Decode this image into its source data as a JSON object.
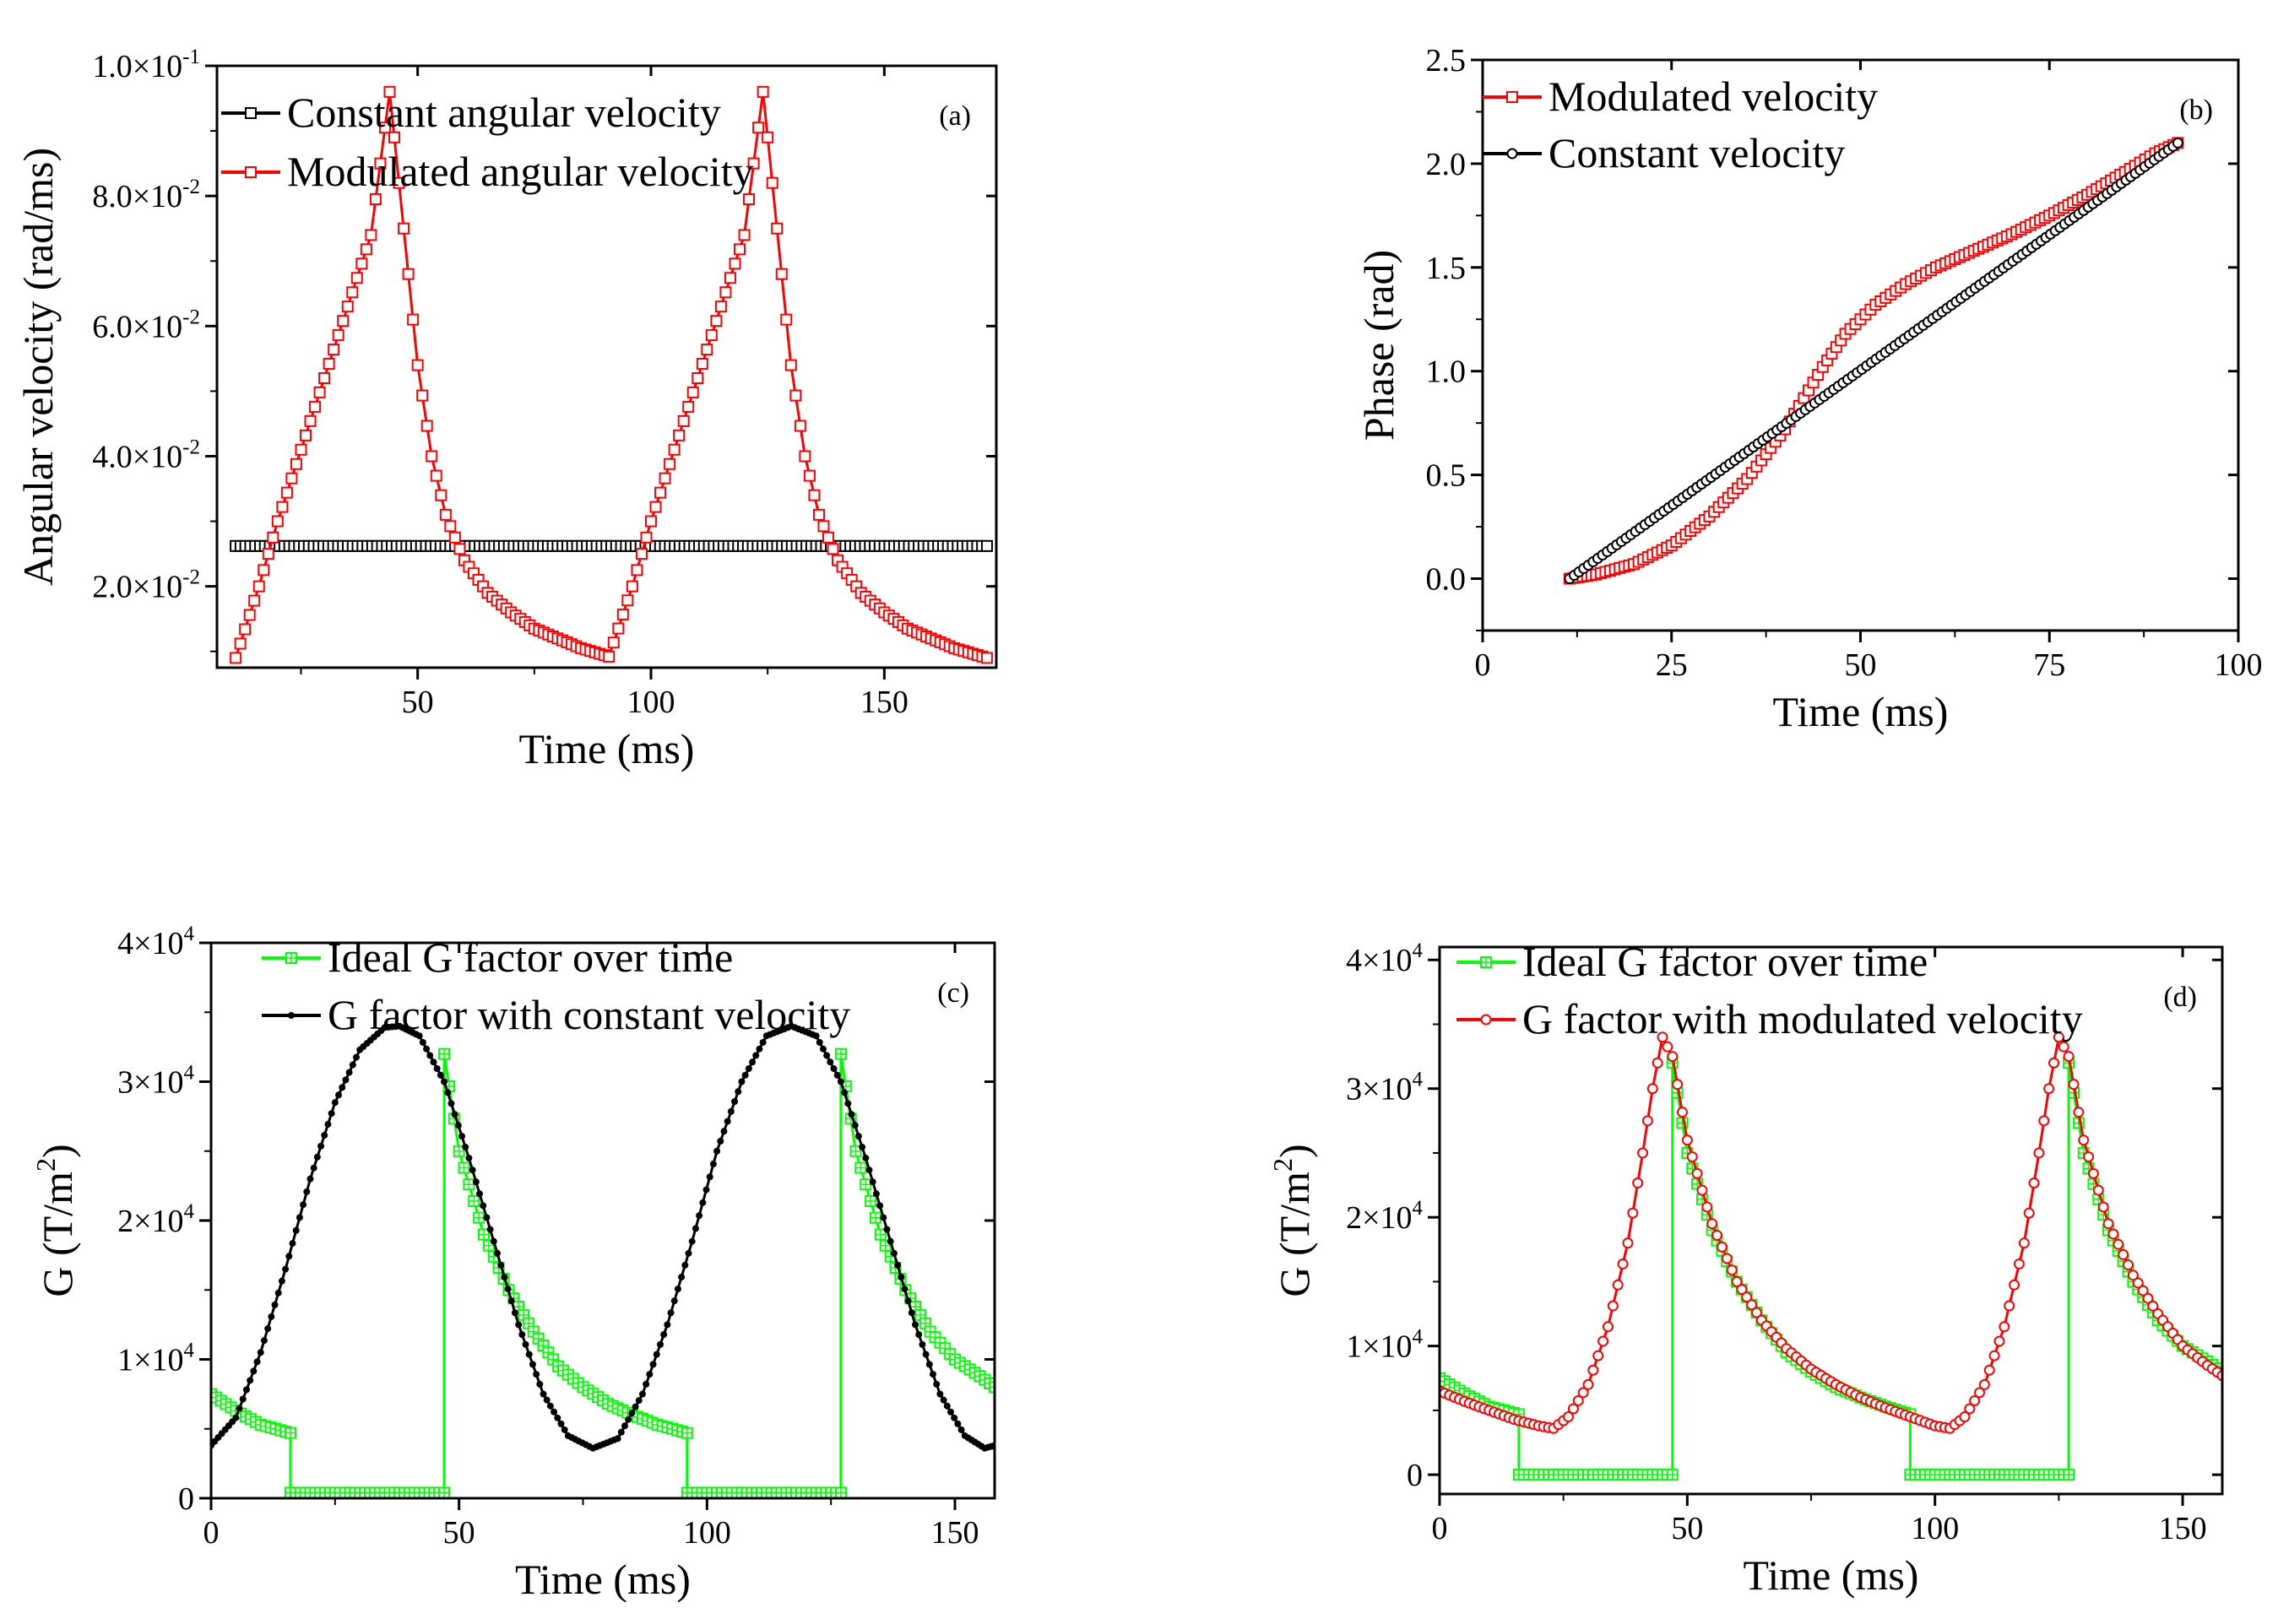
{
  "figure": {
    "description_note": "4-panel figure"
  },
  "chart_data": [
    {
      "id": "a",
      "type": "line",
      "panel_label": "(a)",
      "title": "",
      "xlabel": "Time (ms)",
      "ylabel": "Angular velocity (rad/ms)",
      "xlim": [
        7,
        174
      ],
      "ylim": [
        0.0075,
        0.1
      ],
      "xticks": [
        50,
        100,
        150
      ],
      "xtick_labels": [
        "50",
        "100",
        "150"
      ],
      "yticks": [
        0.02,
        0.04,
        0.06,
        0.08,
        0.1
      ],
      "ytick_labels": [
        {
          "mantissa": "2.0×10",
          "exponent": "-2"
        },
        {
          "mantissa": "4.0×10",
          "exponent": "-2"
        },
        {
          "mantissa": "6.0×10",
          "exponent": "-2"
        },
        {
          "mantissa": "8.0×10",
          "exponent": "-2"
        },
        {
          "mantissa": "1.0×10",
          "exponent": "-1"
        }
      ],
      "legend_position": "top-left",
      "series": [
        {
          "name": "Constant angular velocity",
          "color": "#000000",
          "marker": "square",
          "points": [
            [
              11,
              0.0262
            ],
            [
              172,
              0.0262
            ]
          ]
        },
        {
          "name": "Modulated angular velocity",
          "color": "#ff0000",
          "marker": "square",
          "points": [
            [
              11,
              0.009
            ],
            [
              16,
              0.02
            ],
            [
              20,
              0.03
            ],
            [
              25,
              0.041
            ],
            [
              30,
              0.052
            ],
            [
              35,
              0.063
            ],
            [
              40,
              0.074
            ],
            [
              44,
              0.096
            ],
            [
              47,
              0.075
            ],
            [
              50,
              0.054
            ],
            [
              53,
              0.04
            ],
            [
              56,
              0.031
            ],
            [
              60,
              0.024
            ],
            [
              65,
              0.019
            ],
            [
              70,
              0.016
            ],
            [
              75,
              0.0135
            ],
            [
              80,
              0.012
            ],
            [
              85,
              0.0105
            ],
            [
              91,
              0.0092
            ],
            [
              96,
              0.02
            ],
            [
              100,
              0.03
            ],
            [
              105,
              0.041
            ],
            [
              110,
              0.052
            ],
            [
              115,
              0.063
            ],
            [
              120,
              0.074
            ],
            [
              124,
              0.096
            ],
            [
              127,
              0.075
            ],
            [
              130,
              0.054
            ],
            [
              133,
              0.04
            ],
            [
              136,
              0.031
            ],
            [
              140,
              0.024
            ],
            [
              145,
              0.019
            ],
            [
              150,
              0.016
            ],
            [
              155,
              0.0135
            ],
            [
              160,
              0.012
            ],
            [
              165,
              0.0105
            ],
            [
              172,
              0.009
            ]
          ]
        }
      ]
    },
    {
      "id": "b",
      "type": "line",
      "panel_label": "(b)",
      "title": "",
      "xlabel": "Time (ms)",
      "ylabel": "Phase (rad)",
      "xlim": [
        0,
        100
      ],
      "ylim": [
        -0.25,
        2.5
      ],
      "xticks": [
        0,
        25,
        50,
        75,
        100
      ],
      "xtick_labels": [
        "0",
        "25",
        "50",
        "75",
        "100"
      ],
      "yticks": [
        0.0,
        0.5,
        1.0,
        1.5,
        2.0,
        2.5
      ],
      "ytick_labels": [
        "0.0",
        "0.5",
        "1.0",
        "1.5",
        "2.0",
        "2.5"
      ],
      "legend_position": "top-left",
      "series": [
        {
          "name": "Modulated velocity",
          "color": "#ff0000",
          "marker": "square",
          "points": [
            [
              11.5,
              0.0
            ],
            [
              15,
              0.02
            ],
            [
              20,
              0.07
            ],
            [
              25,
              0.16
            ],
            [
              30,
              0.3
            ],
            [
              35,
              0.48
            ],
            [
              40,
              0.72
            ],
            [
              45,
              1.02
            ],
            [
              48,
              1.18
            ],
            [
              52,
              1.32
            ],
            [
              56,
              1.42
            ],
            [
              60,
              1.5
            ],
            [
              65,
              1.58
            ],
            [
              70,
              1.66
            ],
            [
              75,
              1.75
            ],
            [
              80,
              1.85
            ],
            [
              85,
              1.96
            ],
            [
              89,
              2.05
            ],
            [
              92,
              2.1
            ]
          ]
        },
        {
          "name": "Constant velocity",
          "color": "#000000",
          "marker": "circle",
          "points": [
            [
              11.5,
              0.0
            ],
            [
              92,
              2.1
            ]
          ]
        }
      ]
    },
    {
      "id": "c",
      "type": "line",
      "panel_label": "(c)",
      "title": "",
      "xlabel": "Time (ms)",
      "ylabel": "G (T/m^2)",
      "xlim": [
        0,
        158
      ],
      "ylim": [
        0,
        40000
      ],
      "xticks": [
        0,
        50,
        100,
        150
      ],
      "xtick_labels": [
        "0",
        "50",
        "100",
        "150"
      ],
      "yticks": [
        0,
        10000,
        20000,
        30000,
        40000
      ],
      "ytick_labels": [
        {
          "mantissa": "0",
          "exponent": ""
        },
        {
          "mantissa": "1×10",
          "exponent": "4"
        },
        {
          "mantissa": "2×10",
          "exponent": "4"
        },
        {
          "mantissa": "3×10",
          "exponent": "4"
        },
        {
          "mantissa": "4×10",
          "exponent": "4"
        }
      ],
      "legend_position": "top-center",
      "series": [
        {
          "name": "Ideal G factor over time",
          "color": "#00ff00",
          "marker": "square-plus",
          "points": [
            [
              0,
              7500
            ],
            [
              5,
              6300
            ],
            [
              10,
              5300
            ],
            [
              16,
              4700
            ],
            [
              16,
              400
            ],
            [
              47,
              400
            ],
            [
              47,
              32000
            ],
            [
              50,
              25000
            ],
            [
              55,
              19000
            ],
            [
              60,
              15000
            ],
            [
              65,
              12000
            ],
            [
              70,
              9500
            ],
            [
              75,
              8000
            ],
            [
              80,
              6800
            ],
            [
              85,
              6000
            ],
            [
              90,
              5300
            ],
            [
              96,
              4700
            ],
            [
              96,
              400
            ],
            [
              127,
              400
            ],
            [
              127,
              32000
            ],
            [
              130,
              25000
            ],
            [
              135,
              19000
            ],
            [
              140,
              15000
            ],
            [
              145,
              12000
            ],
            [
              150,
              10000
            ],
            [
              155,
              8800
            ],
            [
              158,
              8000
            ]
          ]
        },
        {
          "name": "G factor with constant velocity",
          "color": "#000000",
          "marker": "dot",
          "points": [
            [
              0,
              3800
            ],
            [
              5,
              5800
            ],
            [
              10,
              10500
            ],
            [
              15,
              16500
            ],
            [
              20,
              23000
            ],
            [
              25,
              28500
            ],
            [
              30,
              32300
            ],
            [
              35,
              33900
            ],
            [
              38,
              34000
            ],
            [
              42,
              33300
            ],
            [
              47,
              30000
            ],
            [
              52,
              24500
            ],
            [
              57,
              18500
            ],
            [
              62,
              12500
            ],
            [
              67,
              7500
            ],
            [
              72,
              4500
            ],
            [
              77,
              3600
            ],
            [
              82,
              4300
            ],
            [
              87,
              7500
            ],
            [
              92,
              12500
            ],
            [
              97,
              18500
            ],
            [
              102,
              25000
            ],
            [
              107,
              30000
            ],
            [
              112,
              33300
            ],
            [
              117,
              34000
            ],
            [
              122,
              33300
            ],
            [
              127,
              30000
            ],
            [
              132,
              24500
            ],
            [
              137,
              18500
            ],
            [
              142,
              12500
            ],
            [
              147,
              7500
            ],
            [
              152,
              4500
            ],
            [
              156,
              3600
            ],
            [
              158,
              3800
            ]
          ]
        }
      ]
    },
    {
      "id": "d",
      "type": "line",
      "panel_label": "(d)",
      "title": "",
      "xlabel": "Time (ms)",
      "ylabel": "G (T/m^2)",
      "xlim": [
        0,
        158
      ],
      "ylim": [
        -1500,
        41000
      ],
      "xticks": [
        0,
        50,
        100,
        150
      ],
      "xtick_labels": [
        "0",
        "50",
        "100",
        "150"
      ],
      "yticks": [
        0,
        10000,
        20000,
        30000,
        40000
      ],
      "ytick_labels": [
        {
          "mantissa": "0",
          "exponent": ""
        },
        {
          "mantissa": "1×10",
          "exponent": "4"
        },
        {
          "mantissa": "2×10",
          "exponent": "4"
        },
        {
          "mantissa": "3×10",
          "exponent": "4"
        },
        {
          "mantissa": "4×10",
          "exponent": "4"
        }
      ],
      "legend_position": "top-center",
      "series": [
        {
          "name": "Ideal G factor over time",
          "color": "#00ff00",
          "marker": "square-plus",
          "points": [
            [
              0,
              7500
            ],
            [
              5,
              6300
            ],
            [
              10,
              5300
            ],
            [
              16,
              4700
            ],
            [
              16,
              0
            ],
            [
              47,
              0
            ],
            [
              47,
              32000
            ],
            [
              50,
              25000
            ],
            [
              55,
              19000
            ],
            [
              60,
              15000
            ],
            [
              65,
              12000
            ],
            [
              70,
              9500
            ],
            [
              75,
              8000
            ],
            [
              80,
              6800
            ],
            [
              85,
              6000
            ],
            [
              90,
              5300
            ],
            [
              95,
              4700
            ],
            [
              95,
              0
            ],
            [
              127,
              0
            ],
            [
              127,
              32000
            ],
            [
              130,
              25000
            ],
            [
              135,
              19000
            ],
            [
              140,
              15000
            ],
            [
              145,
              12000
            ],
            [
              150,
              10000
            ],
            [
              155,
              8800
            ],
            [
              158,
              8000
            ]
          ]
        },
        {
          "name": "G factor with modulated velocity",
          "color": "#ff0000",
          "marker": "circle",
          "points": [
            [
              0,
              6500
            ],
            [
              5,
              5700
            ],
            [
              10,
              5000
            ],
            [
              15,
              4300
            ],
            [
              20,
              3800
            ],
            [
              23,
              3600
            ],
            [
              26,
              4500
            ],
            [
              30,
              7000
            ],
            [
              34,
              11500
            ],
            [
              38,
              18000
            ],
            [
              41,
              25000
            ],
            [
              43,
              30000
            ],
            [
              45,
              34000
            ],
            [
              47,
              32500
            ],
            [
              50,
              26000
            ],
            [
              55,
              19500
            ],
            [
              60,
              15000
            ],
            [
              65,
              12000
            ],
            [
              70,
              9800
            ],
            [
              75,
              8200
            ],
            [
              80,
              7000
            ],
            [
              85,
              6000
            ],
            [
              90,
              5200
            ],
            [
              95,
              4500
            ],
            [
              100,
              3800
            ],
            [
              103,
              3600
            ],
            [
              106,
              4500
            ],
            [
              110,
              7000
            ],
            [
              114,
              11500
            ],
            [
              118,
              18000
            ],
            [
              121,
              25000
            ],
            [
              123,
              30000
            ],
            [
              125,
              34000
            ],
            [
              127,
              32500
            ],
            [
              130,
              26000
            ],
            [
              135,
              19500
            ],
            [
              140,
              15500
            ],
            [
              145,
              12500
            ],
            [
              150,
              10000
            ],
            [
              155,
              8500
            ],
            [
              158,
              7700
            ]
          ]
        }
      ]
    }
  ]
}
